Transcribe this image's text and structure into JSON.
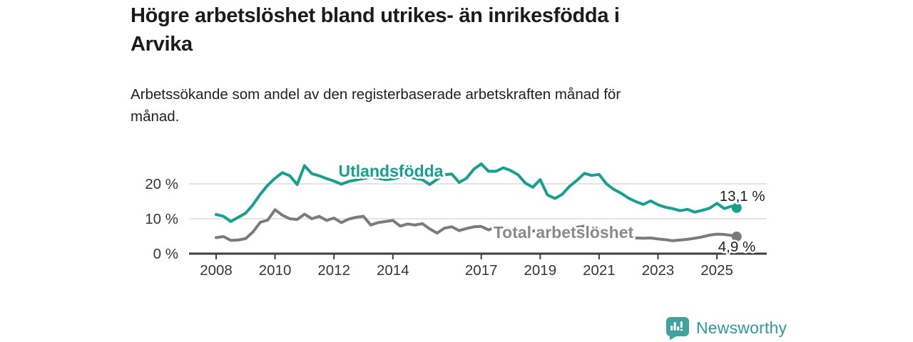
{
  "header": {
    "title": "Högre arbetslöshet bland utrikes- än inrikesfödda i Arvika",
    "title_lines": [
      "Högre arbetslöshet bland utrikes- än inrikesfödda i",
      "Arvika"
    ],
    "subtitle": "Arbetssökande som andel av den registerbaserade arbetskraften månad för månad.",
    "subtitle_lines": [
      "Arbetssökande som andel av den registerbaserade arbetskraften månad för",
      "månad."
    ]
  },
  "footer": {
    "brand": "Newsworthy",
    "logo_icon": "newsworthy-speech-bubble-bar-chart-icon",
    "brand_color": "#2f9b95",
    "icon_color": "#3fa29c"
  },
  "chart_data": {
    "type": "line",
    "title": "Högre arbetslöshet bland utrikes- än inrikesfödda i Arvika",
    "subtitle": "Arbetssökande som andel av den registerbaserade arbetskraften månad för månad.",
    "xlabel": "",
    "ylabel": "",
    "xlim": [
      2007.1,
      2026.7
    ],
    "ylim": [
      0,
      28
    ],
    "grid": "horizontal-only",
    "legend_position": "inline-labels",
    "x_tick_years": [
      2008,
      2010,
      2012,
      2014,
      2017,
      2019,
      2021,
      2023,
      2025
    ],
    "x_tick_labels": [
      "2008",
      "2010",
      "2012",
      "2014",
      "2017",
      "2019",
      "2021",
      "2023",
      "2025"
    ],
    "y_ticks": [
      {
        "value": 0,
        "label": "0 %"
      },
      {
        "value": 10,
        "label": "10 %"
      },
      {
        "value": 20,
        "label": "20 %"
      }
    ],
    "x": [
      2008,
      2008.25,
      2008.5,
      2008.75,
      2009,
      2009.25,
      2009.5,
      2009.75,
      2010,
      2010.25,
      2010.5,
      2010.75,
      2011,
      2011.25,
      2011.5,
      2011.75,
      2012,
      2012.25,
      2012.5,
      2012.75,
      2013,
      2013.25,
      2013.5,
      2013.75,
      2014,
      2014.25,
      2014.5,
      2014.75,
      2015,
      2015.25,
      2015.5,
      2015.75,
      2016,
      2016.25,
      2016.5,
      2016.75,
      2017,
      2017.25,
      2017.5,
      2017.75,
      2018,
      2018.25,
      2018.5,
      2018.75,
      2019,
      2019.25,
      2019.5,
      2019.75,
      2020,
      2020.25,
      2020.5,
      2020.75,
      2021,
      2021.25,
      2021.5,
      2021.75,
      2022,
      2022.25,
      2022.5,
      2022.75,
      2023,
      2023.25,
      2023.5,
      2023.75,
      2024,
      2024.25,
      2024.5,
      2024.75,
      2025,
      2025.25,
      2025.5,
      2025.67
    ],
    "series": [
      {
        "name": "Utlandsfödda",
        "color": "#17a08e",
        "end_value": 13.1,
        "end_label": "13,1 %",
        "values": [
          11.2,
          10.7,
          9.2,
          10.4,
          11.6,
          14.0,
          17.0,
          19.6,
          21.6,
          23.2,
          22.3,
          19.8,
          25.2,
          22.9,
          22.3,
          21.5,
          20.8,
          19.9,
          20.7,
          21.1,
          21.5,
          21.9,
          21.6,
          21.2,
          21.4,
          21.9,
          22.1,
          21.6,
          21.2,
          19.8,
          21.3,
          22.6,
          22.8,
          20.4,
          21.6,
          24.2,
          25.7,
          23.6,
          23.6,
          24.6,
          23.8,
          22.6,
          20.2,
          19.0,
          21.2,
          16.8,
          15.8,
          17.0,
          19.3,
          21.0,
          23.0,
          22.4,
          22.7,
          20.0,
          18.4,
          17.3,
          15.9,
          14.9,
          14.1,
          15.1,
          14.0,
          13.3,
          12.9,
          12.3,
          12.7,
          11.9,
          12.4,
          13.0,
          14.4,
          12.9,
          13.6,
          13.1
        ]
      },
      {
        "name": "Total arbetslöshet",
        "color": "#7b7b7e",
        "label_color": "#8a8a8d",
        "end_value": 4.9,
        "end_label": "4,9 %",
        "values": [
          4.6,
          4.9,
          3.8,
          3.9,
          4.3,
          6.2,
          9.0,
          9.6,
          12.6,
          11.0,
          10.0,
          9.8,
          11.3,
          10.0,
          10.7,
          9.5,
          10.2,
          8.9,
          9.9,
          10.4,
          10.7,
          8.2,
          8.9,
          9.2,
          9.5,
          7.9,
          8.5,
          8.2,
          8.6,
          7.1,
          5.9,
          7.3,
          7.7,
          6.6,
          7.2,
          7.7,
          7.8,
          6.8,
          7.7,
          7.4,
          7.1,
          6.6,
          6.3,
          6.5,
          6.7,
          6.3,
          6.2,
          6.5,
          6.9,
          7.6,
          7.9,
          7.4,
          7.0,
          6.4,
          5.7,
          4.8,
          4.6,
          4.5,
          4.4,
          4.5,
          4.2,
          4.0,
          3.7,
          3.9,
          4.1,
          4.4,
          4.8,
          5.3,
          5.6,
          5.5,
          5.2,
          4.9
        ]
      }
    ],
    "colors": {
      "axis": "#3e3e3e",
      "gridline": "#dbdbdb",
      "tick_text": "#363636",
      "value_label_text": "#1f1f1f"
    }
  }
}
